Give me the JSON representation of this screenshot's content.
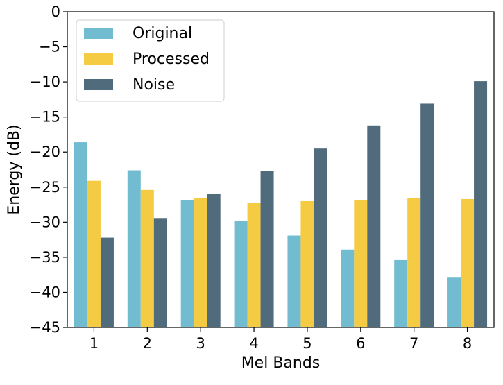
{
  "chart_data": {
    "type": "bar",
    "xlabel": "Mel Bands",
    "ylabel": "Energy (dB)",
    "ylim": [
      -45,
      0
    ],
    "yticks": [
      0,
      -5,
      -10,
      -15,
      -20,
      -25,
      -30,
      -35,
      -40,
      -45
    ],
    "categories": [
      "1",
      "2",
      "3",
      "4",
      "5",
      "6",
      "7",
      "8"
    ],
    "series": [
      {
        "name": "Original",
        "color": "#72BCD1",
        "values": [
          -18.6,
          -22.6,
          -26.9,
          -29.8,
          -31.9,
          -33.9,
          -35.4,
          -37.9
        ]
      },
      {
        "name": "Processed",
        "color": "#F5CB44",
        "values": [
          -24.1,
          -25.4,
          -26.6,
          -27.2,
          -27.0,
          -26.9,
          -26.6,
          -26.7
        ]
      },
      {
        "name": "Noise",
        "color": "#4F6B7C",
        "values": [
          -32.2,
          -29.4,
          -26.0,
          -22.7,
          -19.5,
          -16.2,
          -13.1,
          -9.9
        ]
      }
    ],
    "legend_position": "top-left",
    "grid": false
  }
}
